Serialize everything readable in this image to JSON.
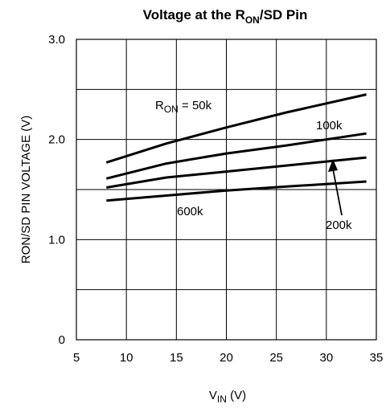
{
  "chart_data": {
    "type": "line",
    "title": {
      "main": "Voltage at the R",
      "sub": "ON",
      "rest": "/SD Pin"
    },
    "xlabel": {
      "main": "V",
      "sub": "IN",
      "rest": " (V)"
    },
    "ylabel": "RON/SD PIN VOLTAGE (V)",
    "xlim": [
      5,
      35
    ],
    "ylim": [
      0,
      3.0
    ],
    "x_ticks": [
      "5",
      "10",
      "15",
      "20",
      "25",
      "30",
      "35"
    ],
    "y_ticks": [
      "0",
      "1.0",
      "2.0",
      "3.0"
    ],
    "grid": true,
    "series": [
      {
        "name": "50k",
        "x": [
          8,
          14,
          20,
          26,
          34
        ],
        "y": [
          1.77,
          1.96,
          2.12,
          2.27,
          2.45
        ]
      },
      {
        "name": "100k",
        "x": [
          8,
          14,
          20,
          26,
          34
        ],
        "y": [
          1.61,
          1.76,
          1.86,
          1.94,
          2.06
        ]
      },
      {
        "name": "200k",
        "x": [
          8,
          14,
          20,
          26,
          34
        ],
        "y": [
          1.52,
          1.62,
          1.68,
          1.74,
          1.82
        ]
      },
      {
        "name": "600k",
        "x": [
          8,
          14,
          20,
          26,
          34
        ],
        "y": [
          1.39,
          1.44,
          1.49,
          1.53,
          1.58
        ]
      }
    ],
    "annotations": {
      "r50": {
        "main": "R",
        "sub": "ON",
        "rest": " = 50k"
      },
      "r100": "100k",
      "r200": "200k",
      "r600": "600k"
    }
  }
}
